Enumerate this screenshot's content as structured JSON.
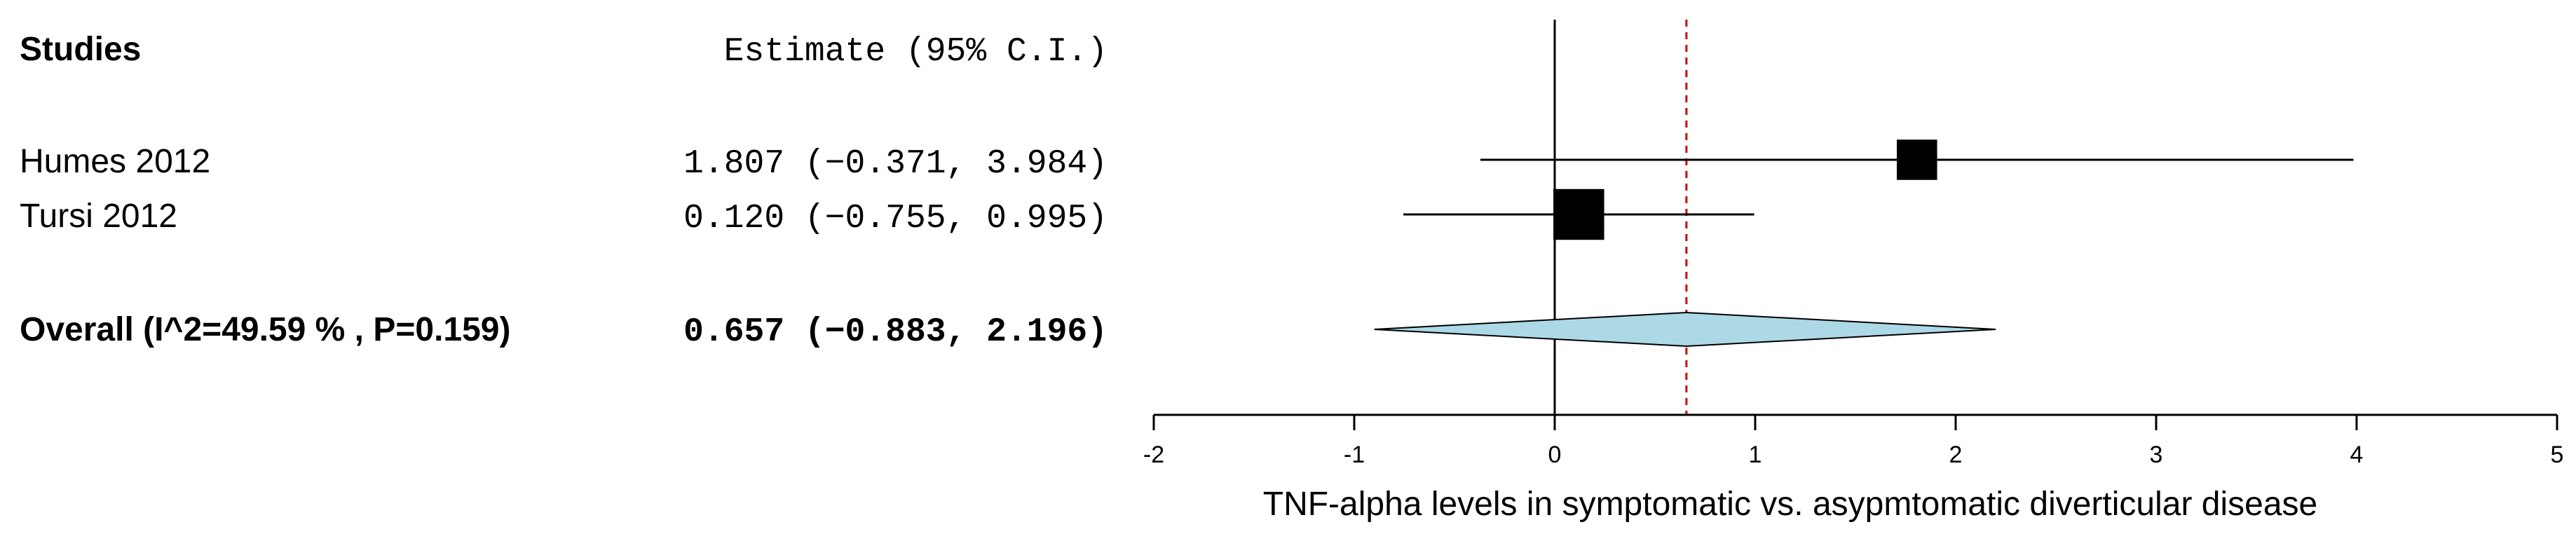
{
  "chart_data": {
    "type": "forest",
    "header": {
      "studies": "Studies",
      "estimate": "Estimate (95% C.I.)"
    },
    "studies": [
      {
        "label": "Humes 2012",
        "estimate": 1.807,
        "lower": -0.371,
        "upper": 3.984,
        "text": "1.807 (−0.371, 3.984)",
        "weight": 0.35
      },
      {
        "label": "Tursi 2012",
        "estimate": 0.12,
        "lower": -0.755,
        "upper": 0.995,
        "text": "0.120 (−0.755, 0.995)",
        "weight": 0.65
      }
    ],
    "overall": {
      "label": "Overall (I^2=49.59 % , P=0.159)",
      "estimate": 0.657,
      "lower": -0.883,
      "upper": 2.196,
      "text": "0.657 (−0.883, 2.196)",
      "prediction_lower": -0.9,
      "prediction_upper": 2.2
    },
    "xaxis": {
      "label": "TNF-alpha levels in symptomatic vs. asypmtomatic diverticular disease",
      "min": -2,
      "max": 5,
      "ticks": [
        -2,
        -1,
        0,
        1,
        2,
        3,
        4,
        5
      ]
    },
    "reference_line": 0,
    "summary_line": 0.657,
    "colors": {
      "diamond_fill": "#add8e6",
      "summary_line": "#cc0000",
      "ink": "#000000"
    }
  }
}
